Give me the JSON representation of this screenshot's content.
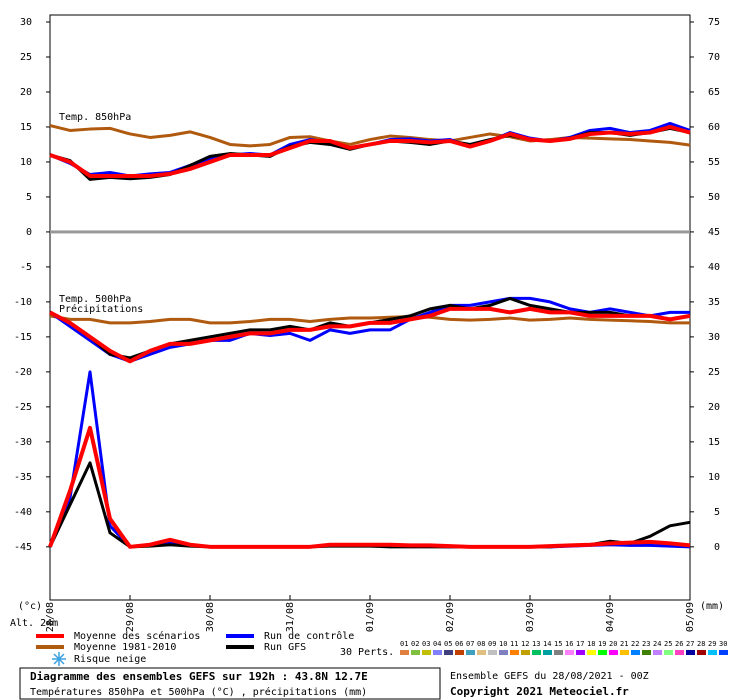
{
  "chart_data": {
    "type": "line",
    "label_850": "Temp. 850hPa",
    "label_500": "Temp. 500hPa",
    "label_precip": "Précipitations",
    "y_unit": "(°c)",
    "y2_unit": "(mm)",
    "altitude": "Alt. 24m",
    "snow_label": "Risque neige",
    "x": [
      0,
      6,
      12,
      18,
      24,
      30,
      36,
      42,
      48,
      54,
      60,
      66,
      72,
      78,
      84,
      90,
      96,
      102,
      108,
      114,
      120,
      126,
      132,
      138,
      144,
      150,
      156,
      162,
      168,
      174,
      180,
      186,
      192
    ],
    "xlim": [
      0,
      192
    ],
    "xticks": [
      {
        "value": 0,
        "label": "28/08"
      },
      {
        "value": 24,
        "label": "29/08"
      },
      {
        "value": 48,
        "label": "30/08"
      },
      {
        "value": 72,
        "label": "31/08"
      },
      {
        "value": 96,
        "label": "01/09"
      },
      {
        "value": 120,
        "label": "02/09"
      },
      {
        "value": 144,
        "label": "03/09"
      },
      {
        "value": 168,
        "label": "04/09"
      },
      {
        "value": 192,
        "label": "05/09"
      }
    ],
    "ylim": [
      -52.6,
      31
    ],
    "yticks": [
      30,
      25,
      20,
      15,
      10,
      5,
      0,
      -5,
      -10,
      -15,
      -20,
      -25,
      -30,
      -35,
      -40,
      -45
    ],
    "y2lim": [
      -7.6,
      76
    ],
    "y2ticks": [
      75,
      70,
      65,
      60,
      55,
      50,
      45,
      40,
      35,
      30,
      25,
      20,
      15,
      10,
      5,
      0
    ],
    "series": [
      {
        "name": "Moyenne 1981-2010",
        "color": "#b05a10",
        "values": [
          15.2,
          14.5,
          14.7,
          14.8,
          14,
          13.5,
          13.8,
          14.3,
          13.5,
          12.5,
          12.3,
          12.5,
          13.5,
          13.6,
          13,
          12.5,
          13.2,
          13.7,
          13.5,
          13.2,
          13,
          13.5,
          14,
          13.6,
          13,
          13.2,
          13.5,
          13.4,
          13.3,
          13.2,
          13,
          12.8,
          12.4
        ],
        "values_500": [
          -12,
          -12.5,
          -12.5,
          -13,
          -13,
          -12.8,
          -12.5,
          -12.5,
          -13,
          -13,
          -12.8,
          -12.5,
          -12.5,
          -12.8,
          -12.5,
          -12.3,
          -12.3,
          -12.2,
          -12.1,
          -12.2,
          -12.5,
          -12.6,
          -12.5,
          -12.3,
          -12.6,
          -12.5,
          -12.3,
          -12.5,
          -12.6,
          -12.7,
          -12.8,
          -13,
          -13
        ]
      },
      {
        "name": "Run de contrôle",
        "color": "#0000ff",
        "values": [
          11,
          9.8,
          8.2,
          8.5,
          8,
          8.3,
          8.5,
          9.5,
          10.5,
          11,
          11.2,
          11,
          12.5,
          13.2,
          12.8,
          12,
          12.5,
          13.2,
          13.3,
          13,
          13.2,
          12.2,
          13,
          14.2,
          13.4,
          13,
          13.5,
          14.5,
          14.8,
          14.2,
          14.5,
          15.5,
          14.5
        ],
        "values_500": [
          -11.5,
          -13.5,
          -15.5,
          -17.5,
          -18.5,
          -17.5,
          -16.5,
          -16,
          -15.5,
          -15.5,
          -14.5,
          -14.8,
          -14.5,
          -15.5,
          -14,
          -14.5,
          -14,
          -14,
          -12.5,
          -11.5,
          -10.5,
          -10.5,
          -10,
          -9.5,
          -9.5,
          -10,
          -11,
          -11.5,
          -11,
          -11.5,
          -12,
          -11.5,
          -11.5
        ],
        "values_precip": [
          0,
          7,
          25,
          3,
          0,
          0.2,
          0.5,
          0.2,
          0,
          0,
          0,
          0,
          0,
          0,
          0.2,
          0.2,
          0.2,
          0.1,
          0.1,
          0.1,
          0,
          0,
          0,
          0,
          0,
          0,
          0.1,
          0.2,
          0.3,
          0.2,
          0.2,
          0.1,
          0
        ]
      },
      {
        "name": "Run GFS",
        "color": "#000000",
        "values": [
          11,
          10.2,
          7.5,
          7.8,
          7.6,
          7.8,
          8.2,
          9.5,
          10.8,
          11.2,
          11,
          10.8,
          12.2,
          12.8,
          12.5,
          11.8,
          12.5,
          13,
          12.8,
          12.5,
          13,
          12.5,
          13.2,
          13.8,
          13.2,
          13,
          13.4,
          14.2,
          14.2,
          13.8,
          14.2,
          14.8,
          14.2
        ],
        "values_500": [
          -11.5,
          -13,
          -15,
          -17.5,
          -18,
          -17,
          -16,
          -15.5,
          -15,
          -14.5,
          -14,
          -14,
          -13.5,
          -14,
          -13,
          -13.5,
          -13,
          -12.5,
          -12,
          -11,
          -10.5,
          -11,
          -10.5,
          -9.5,
          -10.5,
          -11,
          -11.5,
          -11.5,
          -11.5,
          -12,
          -12,
          -12.5,
          -12
        ],
        "values_precip": [
          0,
          6,
          12,
          2,
          0,
          0.1,
          0.3,
          0.1,
          0,
          0,
          0,
          0,
          0,
          0,
          0.1,
          0.1,
          0.1,
          0,
          0,
          0,
          0,
          0,
          0,
          0,
          0,
          0,
          0.2,
          0.3,
          0.8,
          0.5,
          1.5,
          3,
          3.5
        ]
      },
      {
        "name": "Moyenne des scénarios",
        "color": "#ff0000",
        "values": [
          11,
          10,
          8,
          8,
          8,
          8,
          8.3,
          9,
          10,
          11,
          11,
          11,
          12,
          13,
          13,
          12,
          12.5,
          13,
          13,
          12.8,
          13,
          12.2,
          13,
          14,
          13.2,
          13,
          13.3,
          14,
          14.2,
          14,
          14.2,
          15,
          14.2
        ],
        "values_500": [
          -11.5,
          -13,
          -15,
          -17,
          -18.5,
          -17,
          -16,
          -16,
          -15.5,
          -15,
          -14.5,
          -14.5,
          -14,
          -14,
          -13.5,
          -13.5,
          -13,
          -13,
          -12.5,
          -12,
          -11,
          -11,
          -11,
          -11.5,
          -11,
          -11.5,
          -11.5,
          -12,
          -12,
          -12,
          -12,
          -12.5,
          -12
        ],
        "values_precip": [
          0,
          8,
          17,
          4,
          0,
          0.3,
          1,
          0.3,
          0,
          0,
          0,
          0,
          0,
          0,
          0.3,
          0.3,
          0.3,
          0.3,
          0.2,
          0.2,
          0.1,
          0,
          0,
          0,
          0,
          0.1,
          0.2,
          0.3,
          0.5,
          0.6,
          0.7,
          0.5,
          0.2
        ]
      }
    ],
    "perturbations": {
      "label": "30 Perts.",
      "labels": [
        "01",
        "02",
        "03",
        "04",
        "05",
        "06",
        "07",
        "08",
        "09",
        "10",
        "11",
        "12",
        "13",
        "14",
        "15",
        "16",
        "17",
        "18",
        "19",
        "20",
        "21",
        "22",
        "23",
        "24",
        "25",
        "26",
        "27",
        "28",
        "29",
        "30"
      ],
      "colors": [
        "#e08040",
        "#80c040",
        "#c0c000",
        "#8080ff",
        "#404080",
        "#c04000",
        "#40a0c0",
        "#e0c080",
        "#c0c0c0",
        "#8080c0",
        "#ff8000",
        "#c0a000",
        "#00c060",
        "#00a0a0",
        "#808080",
        "#ff80ff",
        "#a000ff",
        "#ffff00",
        "#00ff00",
        "#ff00ff",
        "#ffc000",
        "#0080ff",
        "#408000",
        "#c080ff",
        "#80ff80",
        "#ff40c0",
        "#0000a0",
        "#a00000",
        "#00c0ff",
        "#0040ff"
      ]
    },
    "title": "Diagramme des ensembles GEFS sur 192h : 43.8N 12.7E",
    "subtitle": "Températures 850hPa et 500hPa (°C) , précipitations (mm)",
    "run_info": "Ensemble GEFS du 28/08/2021 - 00Z",
    "copyright": "Copyright 2021 Meteociel.fr"
  }
}
